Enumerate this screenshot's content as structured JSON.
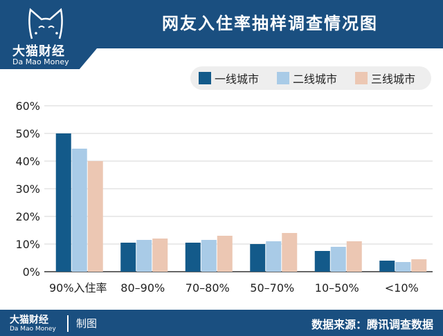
{
  "header": {
    "title": "网友入住率抽样调查情况图",
    "logo_cn": "大猫财经",
    "logo_en": "Da Mao Money",
    "logo_icon": "cat-face-icon"
  },
  "footer": {
    "brand_cn": "大猫财经",
    "brand_en": "Da Mao Money",
    "made_by": "制图",
    "source": "数据来源：腾讯调查数据"
  },
  "colors": {
    "brand": "#1a4f80",
    "series": [
      "#135a8a",
      "#a9cbe7",
      "#ecc7b3"
    ]
  },
  "chart_data": {
    "type": "bar",
    "title": "网友入住率抽样调查情况图",
    "categories": [
      "90%入住率",
      "80–90%",
      "70–80%",
      "50–70%",
      "10–50%",
      "<10%"
    ],
    "series": [
      {
        "name": "一线城市",
        "values": [
          50,
          10.5,
          10.5,
          10,
          7.5,
          4
        ]
      },
      {
        "name": "二线城市",
        "values": [
          44.5,
          11.5,
          11.5,
          11,
          9,
          3.5
        ]
      },
      {
        "name": "三线城市",
        "values": [
          40,
          12,
          13,
          14,
          11,
          4.5
        ]
      }
    ],
    "yticks": [
      "0%",
      "10%",
      "20%",
      "30%",
      "40%",
      "50%",
      "60%"
    ],
    "ylim": [
      0,
      60
    ],
    "grid": true,
    "legend": "top-right"
  }
}
